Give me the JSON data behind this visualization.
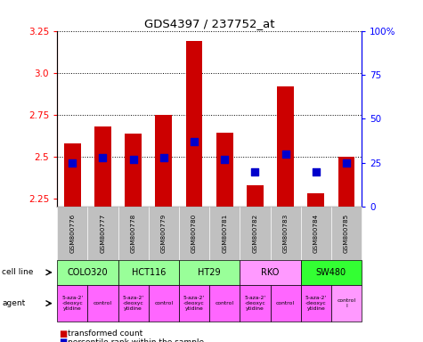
{
  "title": "GDS4397 / 237752_at",
  "samples": [
    "GSM800776",
    "GSM800777",
    "GSM800778",
    "GSM800779",
    "GSM800780",
    "GSM800781",
    "GSM800782",
    "GSM800783",
    "GSM800784",
    "GSM800785"
  ],
  "transformed_counts": [
    2.58,
    2.68,
    2.635,
    2.75,
    3.19,
    2.64,
    2.33,
    2.92,
    2.28,
    2.5
  ],
  "percentile_ranks": [
    25,
    28,
    27,
    28,
    37,
    27,
    20,
    30,
    20,
    25
  ],
  "ylim": [
    2.2,
    3.25
  ],
  "yticks": [
    2.25,
    2.5,
    2.75,
    3.0,
    3.25
  ],
  "right_ytick_pct": [
    0,
    25,
    50,
    75,
    100
  ],
  "right_ylabels": [
    "0",
    "25",
    "50",
    "75",
    "100%"
  ],
  "cell_lines": [
    {
      "name": "COLO320",
      "start": 0,
      "end": 2,
      "color": "#99ff99"
    },
    {
      "name": "HCT116",
      "start": 2,
      "end": 4,
      "color": "#99ff99"
    },
    {
      "name": "HT29",
      "start": 4,
      "end": 6,
      "color": "#99ff99"
    },
    {
      "name": "RKO",
      "start": 6,
      "end": 8,
      "color": "#ff99ff"
    },
    {
      "name": "SW480",
      "start": 8,
      "end": 10,
      "color": "#33ff33"
    }
  ],
  "agents": [
    {
      "name": "5-aza-2'\n-deoxyc\nytidine",
      "color": "#ff66ff",
      "start": 0,
      "end": 1
    },
    {
      "name": "control",
      "color": "#ff66ff",
      "start": 1,
      "end": 2
    },
    {
      "name": "5-aza-2'\n-deoxyc\nytidine",
      "color": "#ff66ff",
      "start": 2,
      "end": 3
    },
    {
      "name": "control",
      "color": "#ff66ff",
      "start": 3,
      "end": 4
    },
    {
      "name": "5-aza-2'\n-deoxyc\nytidine",
      "color": "#ff66ff",
      "start": 4,
      "end": 5
    },
    {
      "name": "control",
      "color": "#ff66ff",
      "start": 5,
      "end": 6
    },
    {
      "name": "5-aza-2'\n-deoxyc\nytidine",
      "color": "#ff66ff",
      "start": 6,
      "end": 7
    },
    {
      "name": "control",
      "color": "#ff66ff",
      "start": 7,
      "end": 8
    },
    {
      "name": "5-aza-2'\n-deoxyc\nytidine",
      "color": "#ff66ff",
      "start": 8,
      "end": 9
    },
    {
      "name": "control\nl",
      "color": "#ff99ff",
      "start": 9,
      "end": 10
    }
  ],
  "bar_color": "#cc0000",
  "dot_color": "#0000cc",
  "sample_bg_color": "#c0c0c0",
  "bar_width": 0.55,
  "dot_size": 28,
  "base_value": 2.2
}
